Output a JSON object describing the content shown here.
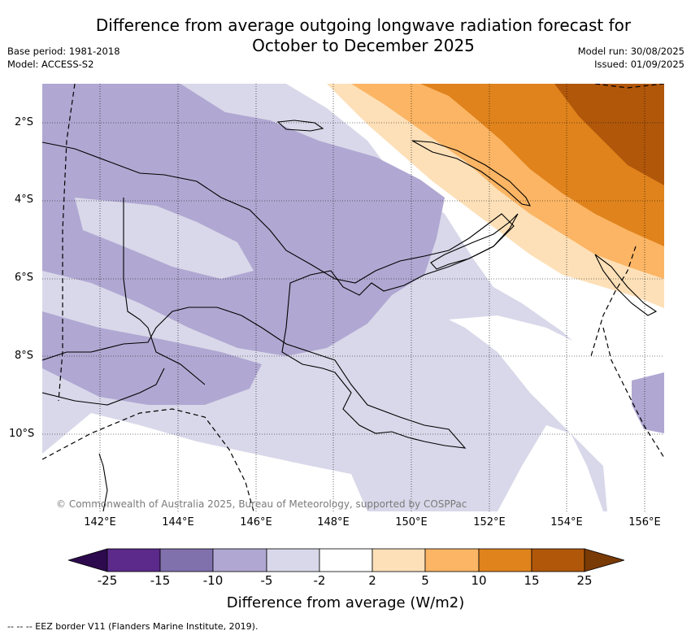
{
  "title": {
    "line1": "Difference from average outgoing longwave radiation forecast for",
    "line2": "October to December 2025"
  },
  "meta_left": {
    "base_period": "Base period: 1981-2018",
    "model": "Model: ACCESS-S2"
  },
  "meta_right": {
    "model_run": "Model run: 30/08/2025",
    "issued": "Issued: 01/09/2025"
  },
  "map": {
    "region": "Papua New Guinea",
    "lat_labels": [
      "2°S",
      "4°S",
      "6°S",
      "8°S",
      "10°S"
    ],
    "lon_labels": [
      "142°E",
      "144°E",
      "146°E",
      "148°E",
      "150°E",
      "152°E",
      "154°E",
      "156°E"
    ],
    "copyright": "© Commonwealth of Australia 2025, Bureau of Meteorology, supported by COSPPac",
    "colors": {
      "-25": "#2d0a4e",
      "-20": "#5b2a8a",
      "-15": "#8070ac",
      "-10": "#b0a8d2",
      "-5": "#d9d8ea",
      "0": "#ffffff",
      "5": "#fde0b8",
      "10": "#fbb564",
      "15": "#e0831c",
      "20": "#b1570a",
      "25": "#7a3a05"
    }
  },
  "colorbar": {
    "labels": [
      "-25",
      "-15",
      "-10",
      "-5",
      "-2",
      "2",
      "5",
      "10",
      "15",
      "25"
    ],
    "title": "Difference from average (W/m2)"
  },
  "footnote": "-- -- -- EEZ border V11 (Flanders Marine Institute, 2019)."
}
